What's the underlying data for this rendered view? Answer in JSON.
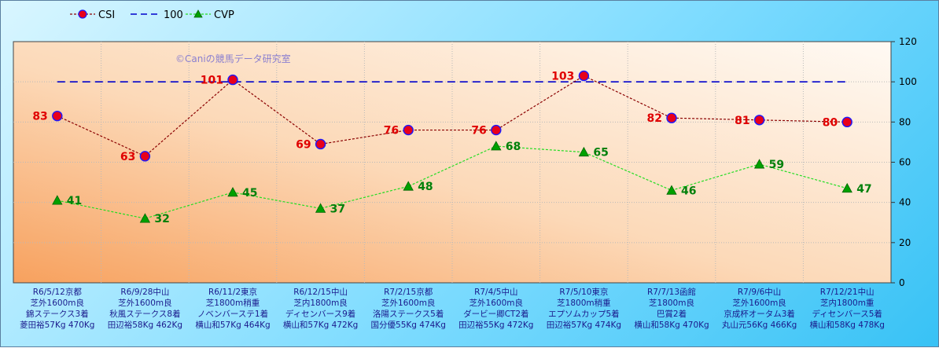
{
  "watermark": "©Caniの競馬データ研究室",
  "legend": [
    {
      "name": "CSI",
      "style": "csi"
    },
    {
      "name": "100",
      "style": "ref"
    },
    {
      "name": "CVP",
      "style": "cvp"
    }
  ],
  "colors": {
    "csi_line": "#8b0000",
    "csi_marker": "#e8001a",
    "csi_marker_edge": "#1a1aff",
    "ref_line": "#0000cc",
    "cvp_line": "#22dd22",
    "cvp_marker": "#00a000",
    "csi_label": "#e00000",
    "cvp_label": "#00800a"
  },
  "chart_data": {
    "type": "line",
    "ylim": [
      0,
      120
    ],
    "yticks": [
      0,
      20,
      40,
      60,
      80,
      100,
      120
    ],
    "grid": true,
    "legend_position": "top-left",
    "categories": [
      [
        "R6/5/12京都",
        "芝外1600m良",
        "錦ステークス3着",
        "菱田裕57Kg 470Kg"
      ],
      [
        "R6/9/28中山",
        "芝外1600m良",
        "秋風ステークス8着",
        "田辺裕58Kg 462Kg"
      ],
      [
        "R6/11/2東京",
        "芝1800m稍重",
        "ノベンバーステ1着",
        "横山和57Kg 464Kg"
      ],
      [
        "R6/12/15中山",
        "芝内1800m良",
        "ディセンバース9着",
        "横山和57Kg 472Kg"
      ],
      [
        "R7/2/15京都",
        "芝外1600m良",
        "洛陽ステークス5着",
        "国分優55Kg 474Kg"
      ],
      [
        "R7/4/5中山",
        "芝外1600m良",
        "ダービー卿CT2着",
        "田辺裕55Kg 472Kg"
      ],
      [
        "R7/5/10東京",
        "芝1800m稍重",
        "エプソムカップ5着",
        "田辺裕57Kg 474Kg"
      ],
      [
        "R7/7/13函館",
        "芝1800m良",
        "巴賞2着",
        "横山和58Kg 470Kg"
      ],
      [
        "R7/9/6中山",
        "芝外1600m良",
        "京成杯オータム3着",
        "丸山元56Kg 466Kg"
      ],
      [
        "R7/12/21中山",
        "芝内1800m重",
        "ディセンバース5着",
        "横山和58Kg 478Kg"
      ]
    ],
    "series": [
      {
        "name": "CSI",
        "values": [
          83,
          63,
          101,
          69,
          76,
          76,
          103,
          82,
          81,
          80
        ]
      },
      {
        "name": "100",
        "values": [
          100,
          100,
          100,
          100,
          100,
          100,
          100,
          100,
          100,
          100
        ]
      },
      {
        "name": "CVP",
        "values": [
          41,
          32,
          45,
          37,
          48,
          68,
          65,
          46,
          59,
          47
        ]
      }
    ]
  }
}
